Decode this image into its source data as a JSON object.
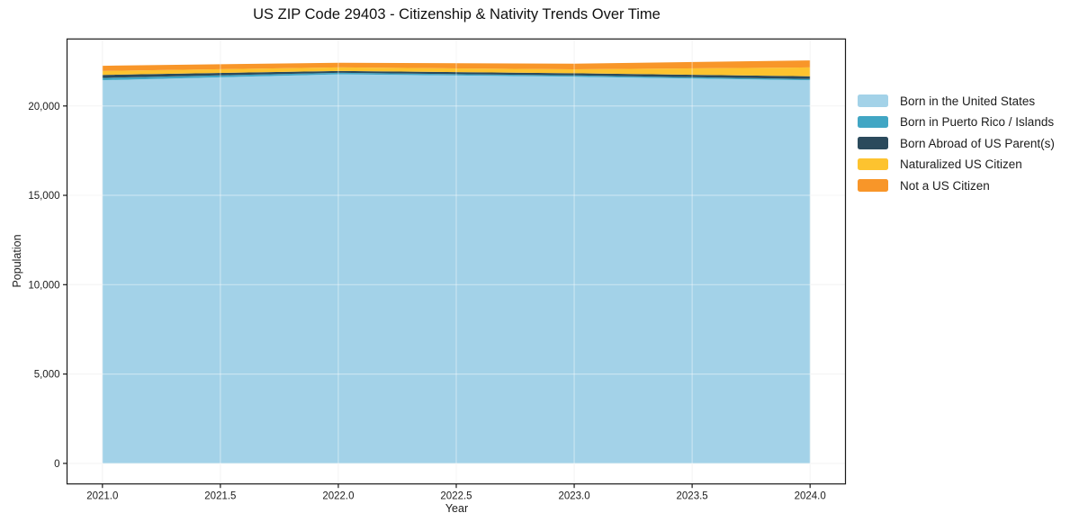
{
  "chart_data": {
    "type": "area",
    "stacked": true,
    "title": "US ZIP Code 29403 - Citizenship & Nativity Trends Over Time",
    "xlabel": "Year",
    "ylabel": "Population",
    "x": [
      2021,
      2022,
      2023,
      2024
    ],
    "series": [
      {
        "name": "Born in the United States",
        "color": "#a3d2e8",
        "values": [
          21440,
          21770,
          21640,
          21440
        ]
      },
      {
        "name": "Born in Puerto Rico / Islands",
        "color": "#41a6c4",
        "values": [
          130,
          90,
          70,
          70
        ]
      },
      {
        "name": "Born Abroad of US Parent(s)",
        "color": "#2b4a5c",
        "values": [
          170,
          100,
          120,
          150
        ]
      },
      {
        "name": "Naturalized US Citizen",
        "color": "#fdc32f",
        "values": [
          220,
          200,
          220,
          500
        ]
      },
      {
        "name": "Not a US Citizen",
        "color": "#f89629",
        "values": [
          290,
          260,
          320,
          390
        ]
      }
    ],
    "xlim": [
      2020.85,
      2024.15
    ],
    "ylim": [
      -1150,
      23750
    ],
    "x_ticks": {
      "values": [
        2021,
        2021.5,
        2022,
        2022.5,
        2023,
        2023.5,
        2024
      ],
      "labels": [
        "2021.0",
        "2021.5",
        "2022.0",
        "2022.5",
        "2023.0",
        "2023.5",
        "2024.0"
      ]
    },
    "y_ticks": {
      "values": [
        0,
        5000,
        10000,
        15000,
        20000
      ],
      "labels": [
        "0",
        "5,000",
        "10,000",
        "15,000",
        "20,000"
      ]
    },
    "grid": true,
    "legend_position": "right"
  },
  "style": {
    "grid_color": "#ededed",
    "grid_overlay_color": "rgba(255,255,255,0.4)",
    "frame_color": "#1a1a1a",
    "tick_color": "#1a1a1a",
    "background": "#ffffff"
  }
}
